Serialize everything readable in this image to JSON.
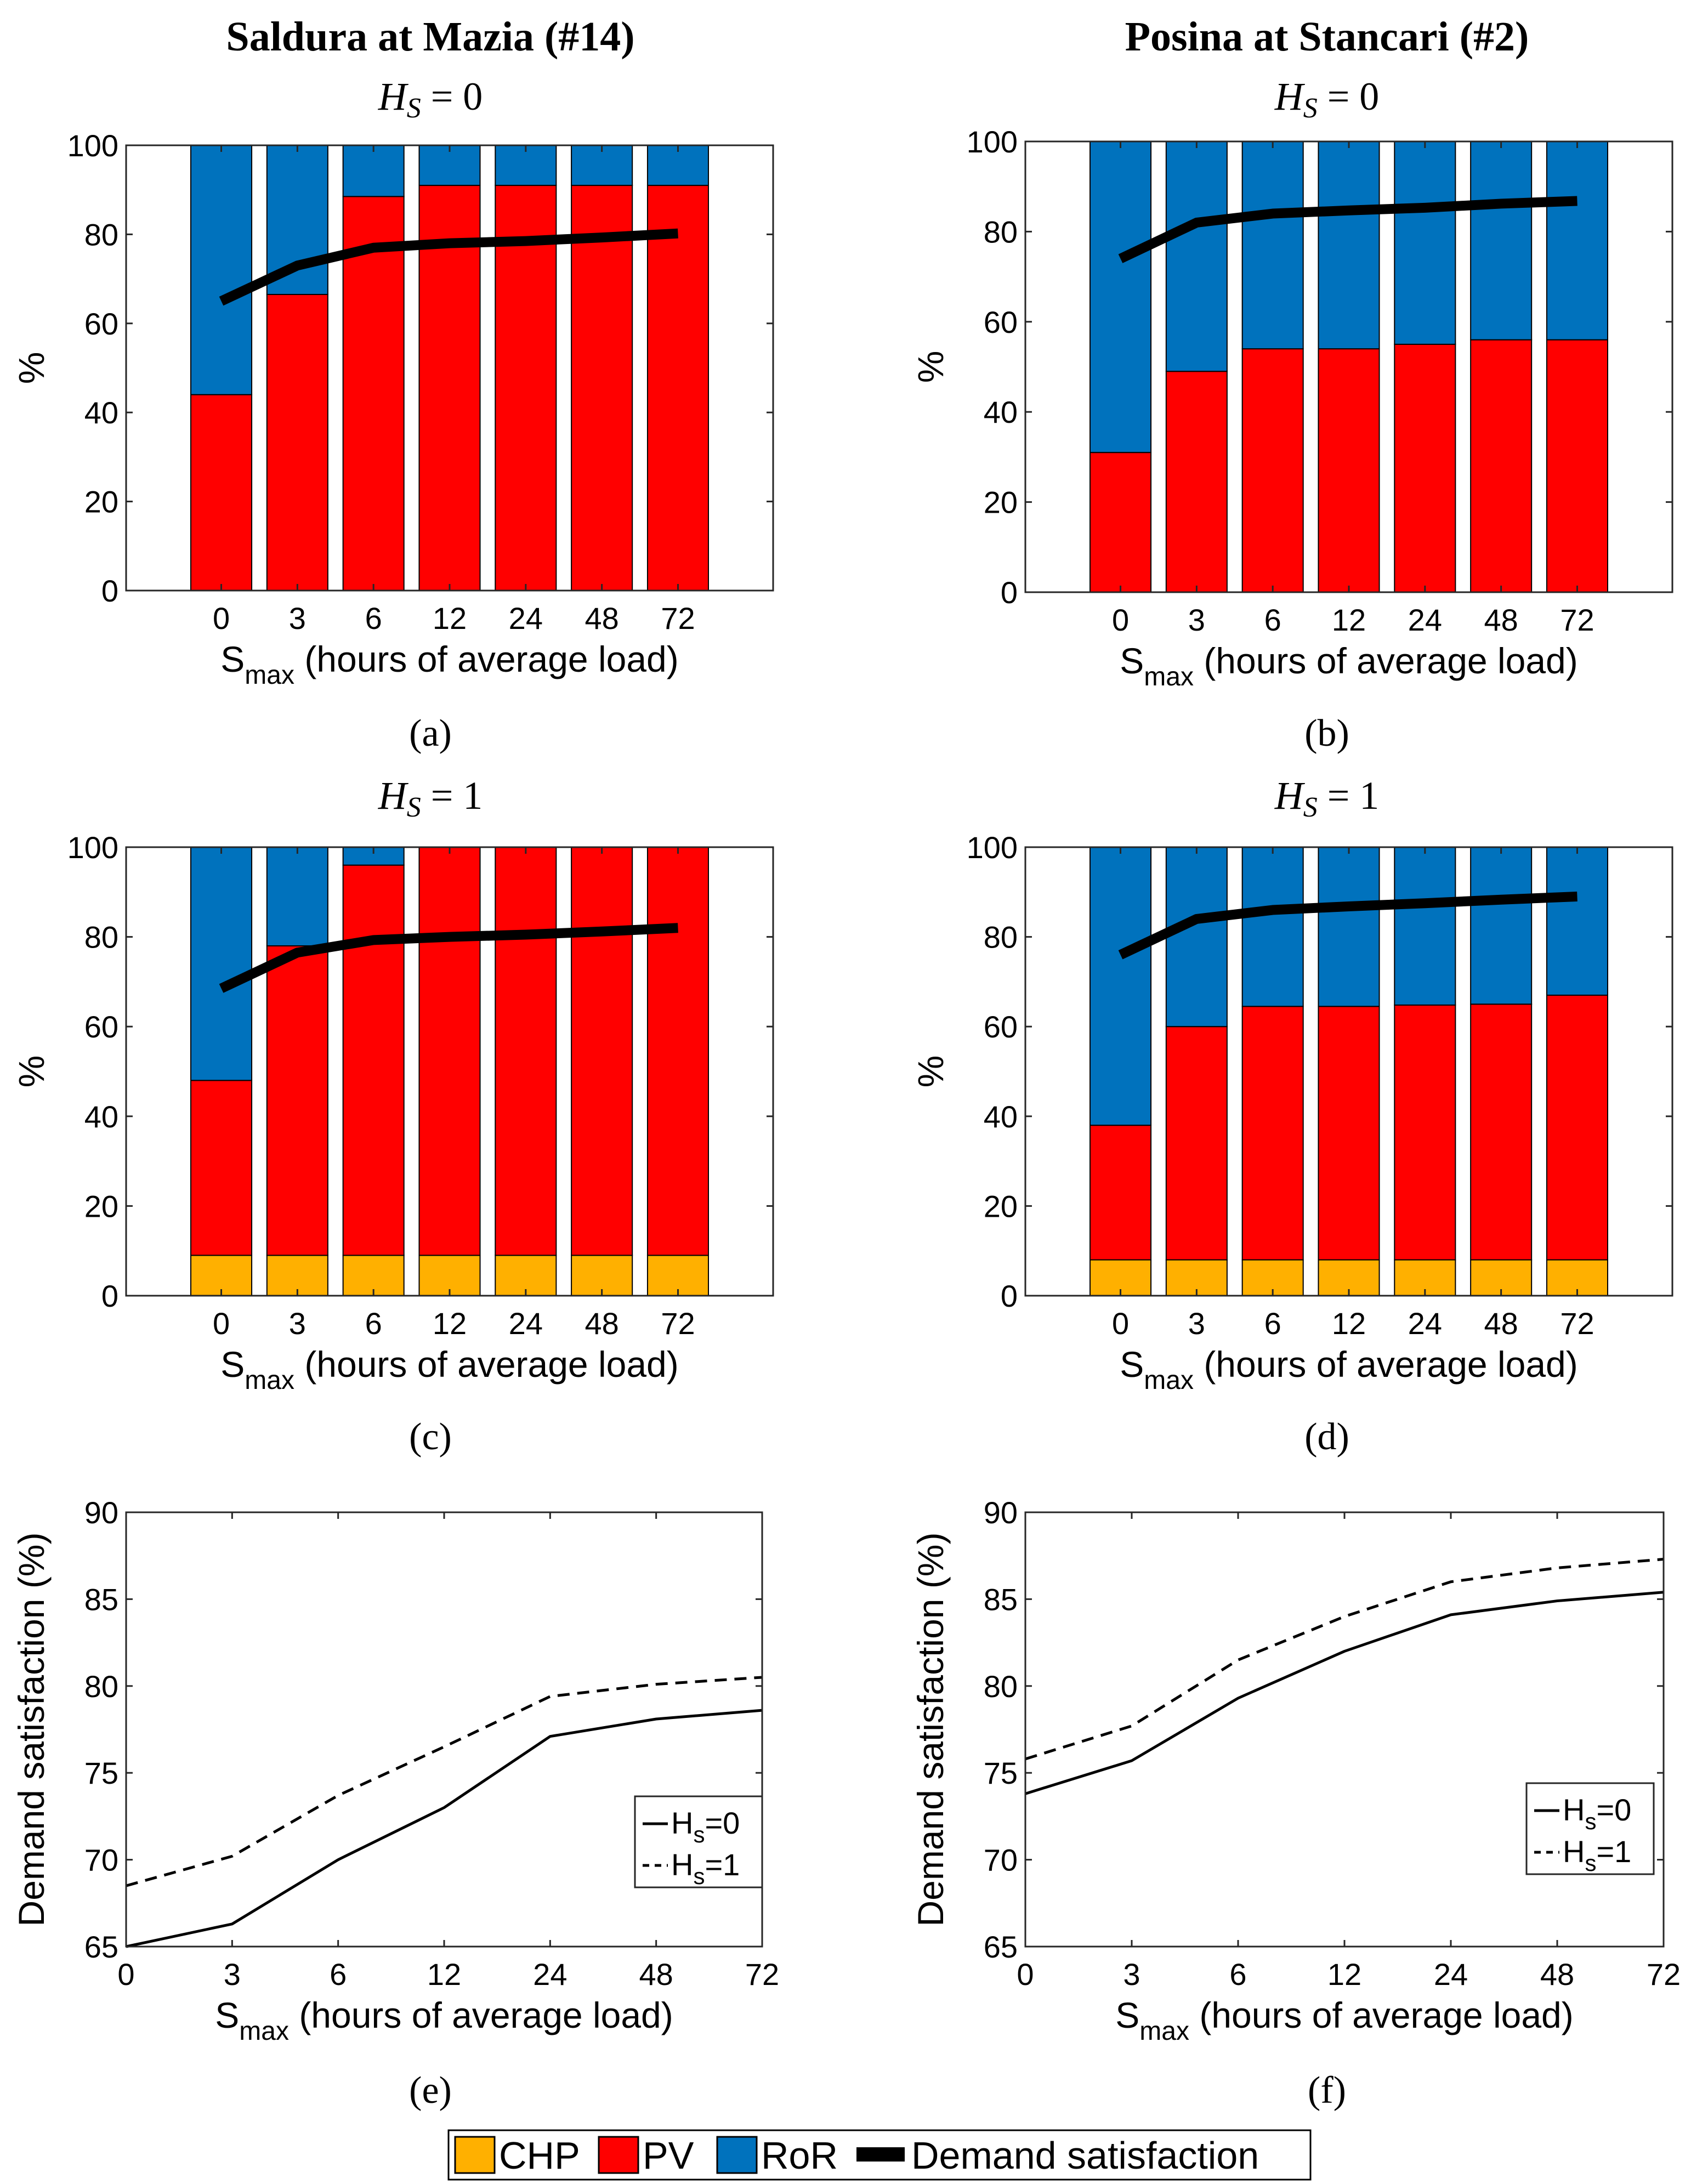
{
  "titles": {
    "left": "Saldura at Mazia (#14)",
    "right": "Posina at Stancari (#2)"
  },
  "colors": {
    "CHP": "#FFB000",
    "PV": "#FF0000",
    "RoR": "#0072BD",
    "demand": "#000000"
  },
  "legend": {
    "items": [
      {
        "key": "CHP",
        "label": "CHP"
      },
      {
        "key": "PV",
        "label": "PV"
      },
      {
        "key": "RoR",
        "label": "RoR"
      },
      {
        "key": "demand",
        "label": "Demand satisfaction"
      }
    ]
  },
  "chart_data": [
    {
      "id": "a",
      "panel_label": "(a)",
      "type": "bar",
      "stacked": true,
      "subtitle": "H_S = 0",
      "subtitle_main": "H",
      "subtitle_sub": "S",
      "subtitle_rest": " = 0",
      "categories": [
        "0",
        "3",
        "6",
        "12",
        "24",
        "48",
        "72"
      ],
      "ylim": [
        0,
        100
      ],
      "yticks": [
        "0",
        "20",
        "40",
        "60",
        "80",
        "100"
      ],
      "ylabel": "%",
      "xlabel_main": "S",
      "xlabel_sub": "max",
      "xlabel_rest": " (hours of average load)",
      "series": [
        {
          "name": "CHP",
          "values": [
            0,
            0,
            0,
            0,
            0,
            0,
            0
          ]
        },
        {
          "name": "PV",
          "values": [
            44,
            66.5,
            88.5,
            91,
            91,
            91,
            91
          ]
        },
        {
          "name": "RoR",
          "values": [
            56,
            33.5,
            11.5,
            9,
            9,
            9,
            9
          ]
        }
      ],
      "line": {
        "name": "Demand satisfaction",
        "values": [
          65,
          73,
          77,
          78,
          78.5,
          79.3,
          80.2
        ]
      }
    },
    {
      "id": "b",
      "panel_label": "(b)",
      "type": "bar",
      "stacked": true,
      "subtitle": "H_S = 0",
      "subtitle_main": "H",
      "subtitle_sub": "S",
      "subtitle_rest": " = 0",
      "categories": [
        "0",
        "3",
        "6",
        "12",
        "24",
        "48",
        "72"
      ],
      "ylim": [
        0,
        100
      ],
      "yticks": [
        "0",
        "20",
        "40",
        "60",
        "80",
        "100"
      ],
      "ylabel": "%",
      "xlabel_main": "S",
      "xlabel_sub": "max",
      "xlabel_rest": " (hours of average load)",
      "series": [
        {
          "name": "CHP",
          "values": [
            0,
            0,
            0,
            0,
            0,
            0,
            0
          ]
        },
        {
          "name": "PV",
          "values": [
            31,
            49,
            54,
            54,
            55,
            56,
            56
          ]
        },
        {
          "name": "RoR",
          "values": [
            69,
            51,
            46,
            46,
            45,
            44,
            44
          ]
        }
      ],
      "line": {
        "name": "Demand satisfaction",
        "values": [
          74,
          82,
          84,
          84.7,
          85.3,
          86.2,
          86.8
        ]
      }
    },
    {
      "id": "c",
      "panel_label": "(c)",
      "type": "bar",
      "stacked": true,
      "subtitle": "H_S = 1",
      "subtitle_main": "H",
      "subtitle_sub": "S",
      "subtitle_rest": " = 1",
      "categories": [
        "0",
        "3",
        "6",
        "12",
        "24",
        "48",
        "72"
      ],
      "ylim": [
        0,
        100
      ],
      "yticks": [
        "0",
        "20",
        "40",
        "60",
        "80",
        "100"
      ],
      "ylabel": "%",
      "xlabel_main": "S",
      "xlabel_sub": "max",
      "xlabel_rest": " (hours of average load)",
      "series": [
        {
          "name": "CHP",
          "values": [
            9,
            9,
            9,
            9,
            9,
            9,
            9
          ]
        },
        {
          "name": "PV",
          "values": [
            39,
            69,
            87,
            91,
            91,
            91,
            91
          ]
        },
        {
          "name": "RoR",
          "values": [
            52,
            22,
            4,
            0,
            0,
            0,
            0
          ]
        }
      ],
      "line": {
        "name": "Demand satisfaction",
        "values": [
          68.5,
          76.5,
          79.3,
          80,
          80.5,
          81.2,
          82
        ]
      }
    },
    {
      "id": "d",
      "panel_label": "(d)",
      "type": "bar",
      "stacked": true,
      "subtitle": "H_S = 1",
      "subtitle_main": "H",
      "subtitle_sub": "S",
      "subtitle_rest": " = 1",
      "categories": [
        "0",
        "3",
        "6",
        "12",
        "24",
        "48",
        "72"
      ],
      "ylim": [
        0,
        100
      ],
      "yticks": [
        "0",
        "20",
        "40",
        "60",
        "80",
        "100"
      ],
      "ylabel": "%",
      "xlabel_main": "S",
      "xlabel_sub": "max",
      "xlabel_rest": " (hours of average load)",
      "series": [
        {
          "name": "CHP",
          "values": [
            8,
            8,
            8,
            8,
            8,
            8,
            8
          ]
        },
        {
          "name": "PV",
          "values": [
            30,
            52,
            56.5,
            56.5,
            56.8,
            57,
            59
          ]
        },
        {
          "name": "RoR",
          "values": [
            62,
            40,
            35.5,
            35.5,
            35.2,
            35,
            33
          ]
        }
      ],
      "line": {
        "name": "Demand satisfaction",
        "values": [
          76,
          84,
          86,
          86.8,
          87.5,
          88.3,
          89
        ]
      }
    },
    {
      "id": "e",
      "panel_label": "(e)",
      "type": "line",
      "categories": [
        "0",
        "3",
        "6",
        "12",
        "24",
        "48",
        "72"
      ],
      "ylim": [
        65,
        90
      ],
      "yticks": [
        "65",
        "70",
        "75",
        "80",
        "85",
        "90"
      ],
      "ylabel": "Demand satisfaction (%)",
      "xlabel_main": "S",
      "xlabel_sub": "max",
      "xlabel_rest": " (hours of average load)",
      "legend_items": [
        {
          "main": "H",
          "sub": "s",
          "rest": "=0",
          "style": "solid"
        },
        {
          "main": "H",
          "sub": "s",
          "rest": "=1",
          "style": "dashed"
        }
      ],
      "series": [
        {
          "name": "Hs=0",
          "style": "solid",
          "values": [
            65,
            66.3,
            70,
            73,
            77.1,
            78.1,
            78.6
          ]
        },
        {
          "name": "Hs=1",
          "style": "dashed",
          "values": [
            68.5,
            70.2,
            73.7,
            76.5,
            79.4,
            80.1,
            80.5
          ]
        }
      ]
    },
    {
      "id": "f",
      "panel_label": "(f)",
      "type": "line",
      "categories": [
        "0",
        "3",
        "6",
        "12",
        "24",
        "48",
        "72"
      ],
      "ylim": [
        65,
        90
      ],
      "yticks": [
        "65",
        "70",
        "75",
        "80",
        "85",
        "90"
      ],
      "ylabel": "Demand satisfaction (%)",
      "xlabel_main": "S",
      "xlabel_sub": "max",
      "xlabel_rest": " (hours of average load)",
      "legend_items": [
        {
          "main": "H",
          "sub": "s",
          "rest": "=0",
          "style": "solid"
        },
        {
          "main": "H",
          "sub": "s",
          "rest": "=1",
          "style": "dashed"
        }
      ],
      "series": [
        {
          "name": "Hs=0",
          "style": "solid",
          "values": [
            73.8,
            75.7,
            79.3,
            82,
            84.1,
            84.9,
            85.4
          ]
        },
        {
          "name": "Hs=1",
          "style": "dashed",
          "values": [
            75.8,
            77.7,
            81.5,
            84,
            86,
            86.8,
            87.3
          ]
        }
      ]
    }
  ]
}
